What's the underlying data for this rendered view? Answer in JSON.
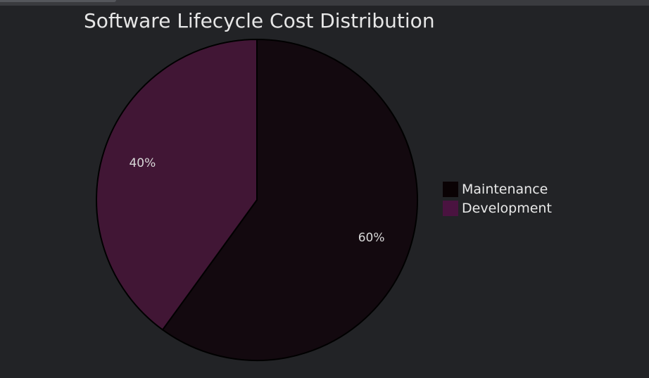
{
  "chart_data": {
    "type": "pie",
    "title": "Software Lifecycle Cost Distribution",
    "slices": [
      {
        "label": "Maintenance",
        "value": 60,
        "display": "60%",
        "color": "#13090f"
      },
      {
        "label": "Development",
        "value": 40,
        "display": "40%",
        "color": "#411635"
      }
    ],
    "legend_position": "right",
    "legend_colors": {
      "Maintenance": "#0a0204",
      "Development": "#4a1340"
    },
    "start_angle_deg": 0,
    "direction": "clockwise"
  }
}
